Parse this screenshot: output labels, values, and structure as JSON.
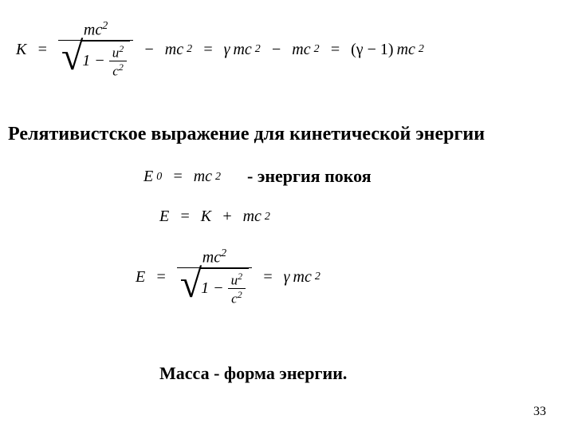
{
  "equations": {
    "kinetic": {
      "lhs": "K",
      "frac_num": "mc",
      "frac_num_sup": "2",
      "inner_num_u": "u",
      "inner_num_u_sup": "2",
      "inner_den_c": "c",
      "inner_den_c_sup": "2",
      "one": "1",
      "minus_mc2_a": "mc",
      "sup2_a": "2",
      "gamma": "γ",
      "mc2_b": "mc",
      "sup2_b": "2",
      "minus_mc2_c": "mc",
      "sup2_c": "2",
      "gamma_minus1": "(γ − 1)",
      "mc2_d": "mc",
      "sup2_d": "2",
      "eq": "=",
      "minus": "−"
    },
    "rest_energy": {
      "E": "E",
      "sub0": "0",
      "eq": "=",
      "mc": "mc",
      "sup2": "2"
    },
    "total_energy": {
      "E": "E",
      "eq": "=",
      "K": "K",
      "plus": "+",
      "mc": "mc",
      "sup2": "2"
    },
    "full_energy": {
      "E": "E",
      "eq": "=",
      "frac_num": "mc",
      "frac_num_sup": "2",
      "one": "1",
      "inner_num_u": "u",
      "inner_num_u_sup": "2",
      "inner_den_c": "c",
      "inner_den_c_sup": "2",
      "gamma": "γ",
      "mc": "mc",
      "sup2": "2",
      "minus": "−"
    }
  },
  "text": {
    "heading": "Релятивистское выражение для кинетической энергии",
    "rest_label": "- энергия покоя",
    "mass_label": "Масса - форма энергии.",
    "page_number": "33"
  },
  "style": {
    "bg": "#ffffff",
    "text_color": "#000000",
    "eq_fontsize": 20,
    "heading_fontsize": 24,
    "label_fontsize": 22,
    "page_fontsize": 16
  }
}
